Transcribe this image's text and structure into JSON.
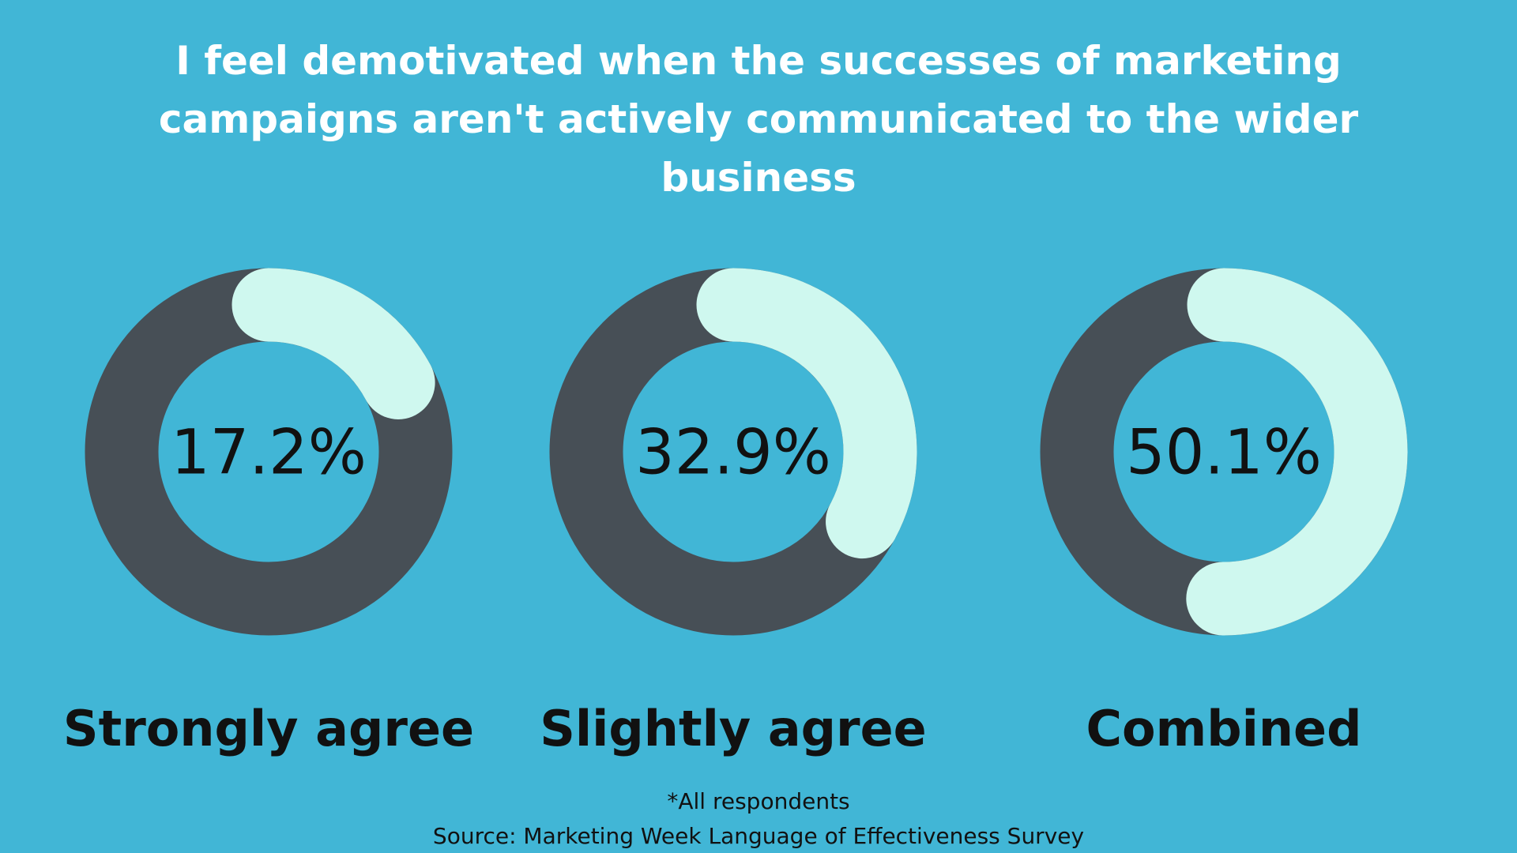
{
  "title": "I feel demotivated when the successes of marketing campaigns aren't actively communicated to the wider business",
  "chart_data": [
    {
      "type": "donut",
      "label": "Strongly agree",
      "values": [
        17.2
      ],
      "value_labels": [
        "17.2%"
      ],
      "color": "#cff8ef",
      "track_color": "#474f56"
    },
    {
      "type": "donut",
      "label": "Slightly agree",
      "values": [
        32.9
      ],
      "value_labels": [
        "32.9%"
      ],
      "color": "#cff8ef",
      "track_color": "#474f56"
    },
    {
      "type": "donut",
      "label": "Combined",
      "values": [
        50.1
      ],
      "value_labels": [
        "50.1%"
      ],
      "color": "#cff8ef",
      "track_color": "#474f56"
    }
  ],
  "notes": [
    "*All respondents",
    "Source: Marketing Week Language of Effectiveness Survey"
  ]
}
